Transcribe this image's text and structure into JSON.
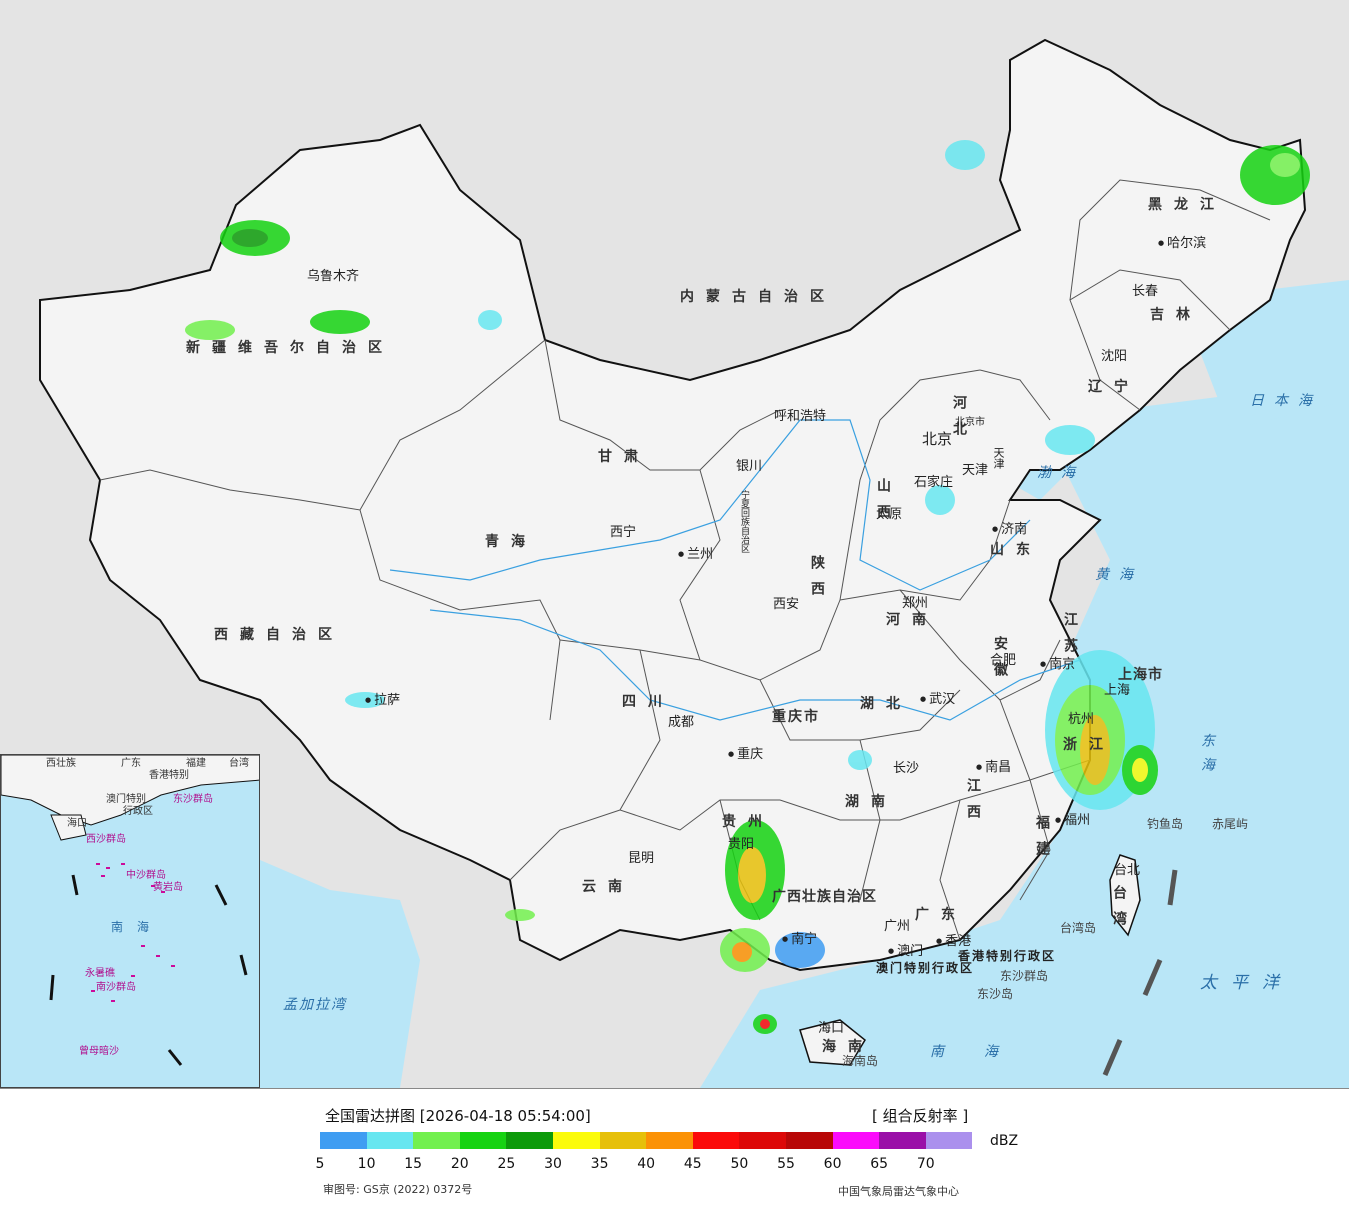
{
  "map": {
    "provinces": [
      "新疆维吾尔自治区",
      "西藏自治区",
      "青海",
      "甘肃",
      "内蒙古自治区",
      "黑龙江",
      "吉林",
      "辽宁",
      "河北",
      "山西",
      "山东",
      "河南",
      "陕西",
      "四川",
      "云南",
      "贵州",
      "湖北",
      "湖南",
      "江西",
      "安徽",
      "江苏",
      "浙江",
      "福建",
      "广东",
      "海南",
      "台湾",
      "宁夏回族自治区",
      "广西壮族自治区",
      "重庆市",
      "上海市",
      "北京市",
      "天津"
    ],
    "cities": [
      "乌鲁木齐",
      "拉萨",
      "西宁",
      "兰州",
      "银川",
      "呼和浩特",
      "北京",
      "天津",
      "石家庄",
      "太原",
      "济南",
      "郑州",
      "西安",
      "成都",
      "重庆",
      "贵阳",
      "昆明",
      "南宁",
      "广州",
      "香港",
      "澳门",
      "长沙",
      "武汉",
      "南昌",
      "合肥",
      "南京",
      "上海",
      "杭州",
      "福州",
      "台北",
      "海口",
      "沈阳",
      "长春",
      "哈尔滨"
    ],
    "seas": [
      "日本海",
      "渤海",
      "黄海",
      "东海",
      "太平洋",
      "南海",
      "孟加拉湾"
    ],
    "islands": [
      "钓鱼岛",
      "赤尾屿",
      "台湾岛",
      "东沙群岛",
      "东沙岛",
      "海南岛"
    ],
    "special_regions": [
      "香港特别行政区",
      "澳门特别行政区"
    ],
    "inset": {
      "labels": [
        "西壮族",
        "广东",
        "福建",
        "台湾",
        "香港特别",
        "澳门特别",
        "行政区",
        "东沙群岛",
        "海口",
        "西沙群岛",
        "中沙群岛",
        "黄岩岛",
        "南海",
        "永暑礁",
        "南沙群岛",
        "曾母暗沙"
      ]
    },
    "colors": {
      "ocean": "#b9e6f7",
      "land_china": "#f4f4f4",
      "land_foreign": "#e4e4e4",
      "border": "#111111",
      "river": "#3aa0e0"
    }
  },
  "legend": {
    "title": "全国雷达拼图 [2026-04-18 05:54:00]",
    "product": "[ 组合反射率 ]",
    "unit": "dBZ",
    "ticks": [
      "5",
      "10",
      "15",
      "20",
      "25",
      "30",
      "35",
      "40",
      "45",
      "50",
      "55",
      "60",
      "65",
      "70"
    ],
    "colors": [
      "#3f9df2",
      "#67e6f0",
      "#72f04e",
      "#16d312",
      "#0c9a0a",
      "#fbfb0b",
      "#e6c00a",
      "#fb9206",
      "#fb0a0a",
      "#dd0808",
      "#b80707",
      "#fb0bfb",
      "#9a0fa8",
      "#ab90ed"
    ],
    "approval": "审图号: GS京 (2022) 0372号",
    "source": "中国气象局雷达气象中心"
  }
}
